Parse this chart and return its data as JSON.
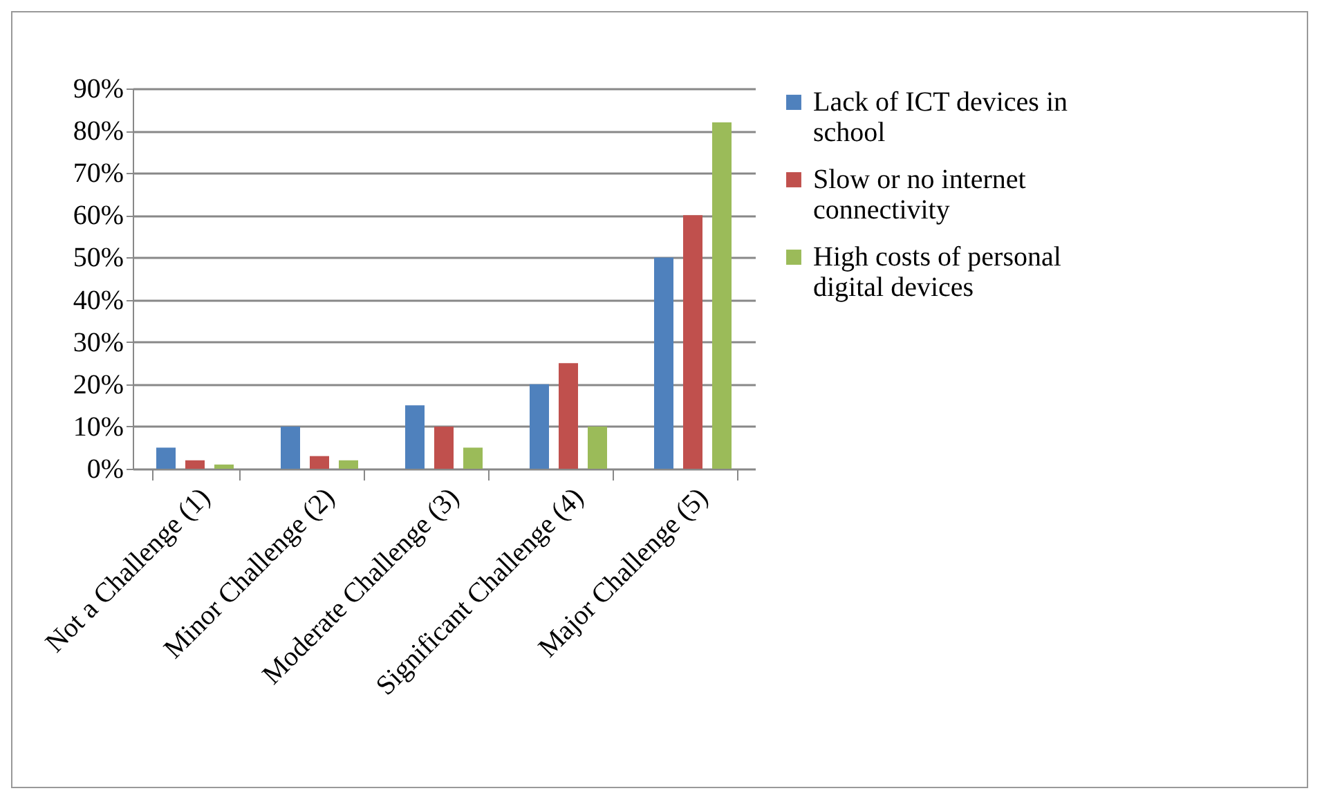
{
  "chart_data": {
    "type": "bar",
    "categories": [
      "Not a Challenge (1)",
      "Minor Challenge (2)",
      "Moderate Challenge (3)",
      "Significant Challenge (4)",
      "Major Challenge (5)"
    ],
    "series": [
      {
        "name": "Lack of ICT devices in school",
        "color": "#4f81bd",
        "values": [
          5,
          10,
          15,
          20,
          50
        ]
      },
      {
        "name": "Slow or no internet connectivity",
        "color": "#c0504d",
        "values": [
          2,
          3,
          10,
          25,
          60
        ]
      },
      {
        "name": "High costs of personal digital devices",
        "color": "#9bbb59",
        "values": [
          1,
          2,
          5,
          10,
          82
        ]
      }
    ],
    "ylim": [
      0,
      90
    ],
    "yticks": [
      {
        "value": 0,
        "label": "0%"
      },
      {
        "value": 10,
        "label": "10%"
      },
      {
        "value": 20,
        "label": "20%"
      },
      {
        "value": 30,
        "label": "30%"
      },
      {
        "value": 40,
        "label": "40%"
      },
      {
        "value": 50,
        "label": "50%"
      },
      {
        "value": 60,
        "label": "60%"
      },
      {
        "value": 70,
        "label": "70%"
      },
      {
        "value": 80,
        "label": "80%"
      },
      {
        "value": 90,
        "label": "90%"
      }
    ],
    "grid": "y",
    "legend": "right"
  }
}
